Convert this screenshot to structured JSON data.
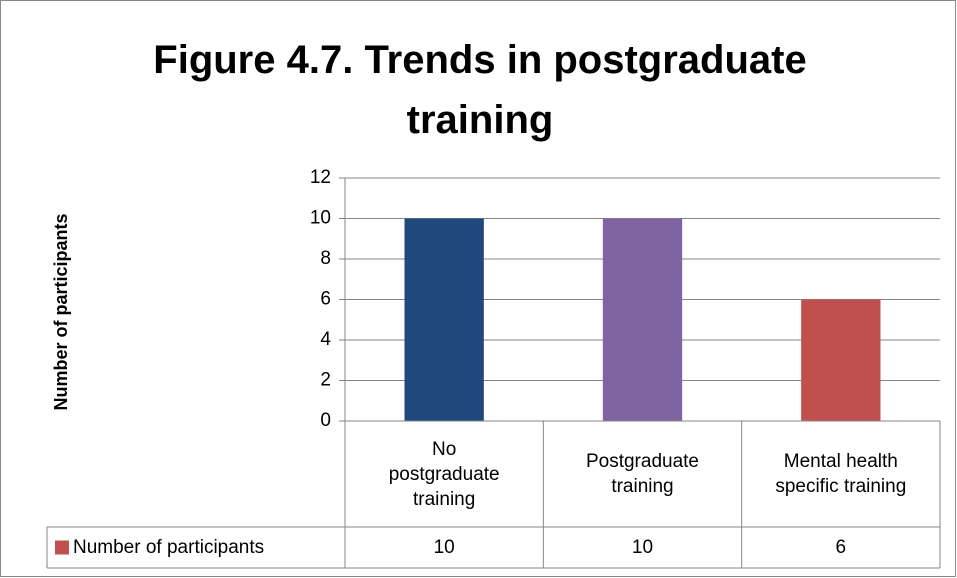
{
  "chart_data": {
    "type": "bar",
    "title": "Figure 4.7. Trends in postgraduate training",
    "y_label": "Number of participants",
    "categories": [
      "No postgraduate training",
      "Postgraduate training",
      "Mental health specific training"
    ],
    "series": [
      {
        "name": "Number of participants",
        "color": "#c0504d",
        "colors": [
          "#1f497d",
          "#8064a2",
          "#c0504d"
        ],
        "values": [
          10,
          10,
          6
        ]
      }
    ],
    "ylim": [
      0,
      12
    ],
    "yticks": [
      0,
      2,
      4,
      6,
      8,
      10,
      12
    ],
    "grid": true,
    "data_table": true
  }
}
